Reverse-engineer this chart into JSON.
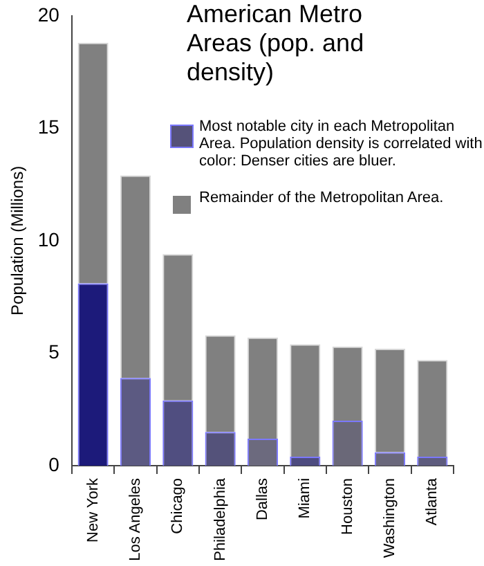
{
  "chart_data": {
    "type": "bar",
    "title": "American Metro Areas (pop. and density)",
    "ylabel": "Population (Millions)",
    "categories": [
      "New York",
      "Los Angeles",
      "Chicago",
      "Philadelphia",
      "Dallas",
      "Miami",
      "Houston",
      "Washington",
      "Atlanta"
    ],
    "stacked": true,
    "series": [
      {
        "name": "Most notable city in each Metropolitan Area. Population density is correlated with color: Denser cities are bluer.",
        "color": "#555279",
        "colors": [
          "#1c1a7a",
          "#5c5a82",
          "#504e80",
          "#54527a",
          "#6c6a7e",
          "#4e4c80",
          "#6a6878",
          "#6a687c",
          "#5e5c7e"
        ],
        "values": [
          8.1,
          3.9,
          2.9,
          1.5,
          1.2,
          0.4,
          2.0,
          0.6,
          0.4
        ]
      },
      {
        "name": "Remainder of the Metropolitan Area.",
        "color": "#808080",
        "values": [
          10.7,
          9.0,
          6.5,
          4.3,
          4.5,
          5.0,
          3.3,
          4.6,
          4.3
        ]
      }
    ],
    "ylim": [
      0,
      20
    ],
    "yticks": [
      0,
      5,
      10,
      15,
      20
    ],
    "grid": false,
    "legend": "top right"
  }
}
